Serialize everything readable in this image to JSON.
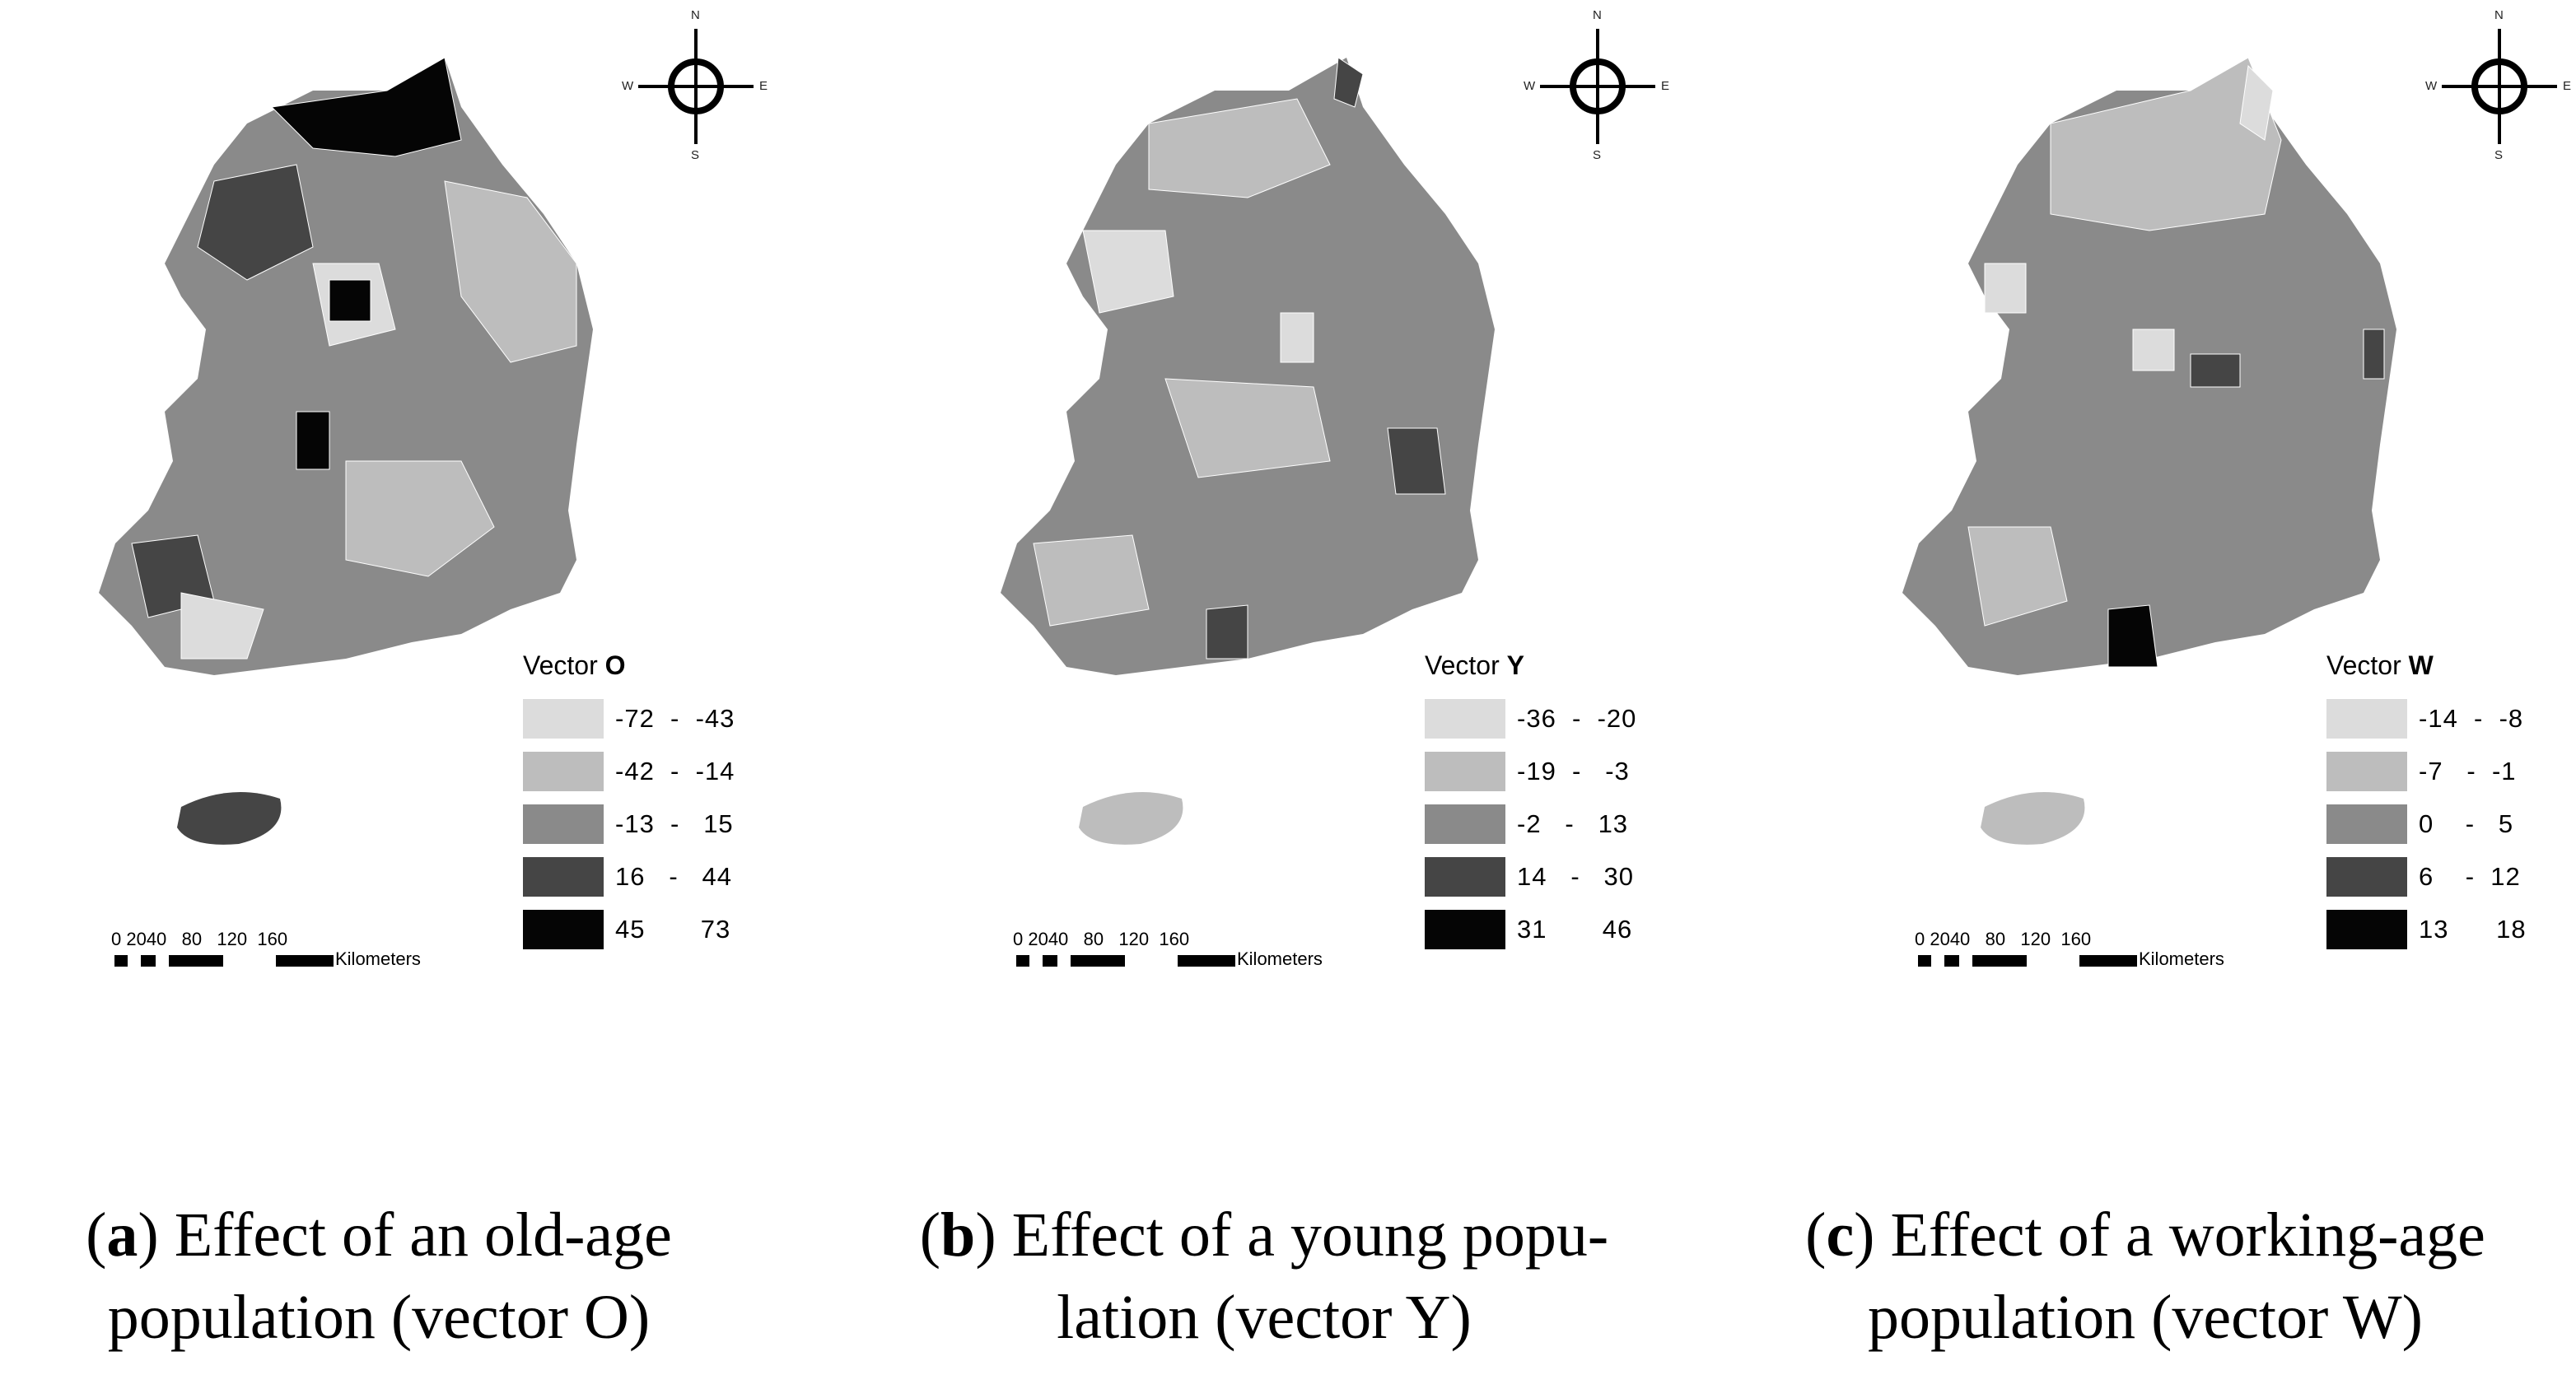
{
  "compass": {
    "n": "N",
    "s": "S",
    "w": "W",
    "e": "E"
  },
  "scale": {
    "ticks": "0 2040   80   120  160",
    "unit": "Kilometers"
  },
  "shade": [
    "#dcdcdc",
    "#bdbdbd",
    "#8a8a8a",
    "#454545",
    "#050505"
  ],
  "panels": [
    {
      "letter": "a",
      "caption_line1": "Effect of an old-age",
      "caption_line2": "population (vector O)",
      "legend_title_prefix": "Vector ",
      "legend_title_var": "O",
      "legend": [
        {
          "label": "-72  -  -43",
          "color": "#dcdcdc"
        },
        {
          "label": "-42  -  -14",
          "color": "#bdbdbd"
        },
        {
          "label": "-13  -   15",
          "color": "#8a8a8a"
        },
        {
          "label": "16   -   44",
          "color": "#454545"
        },
        {
          "label": "45       73",
          "color": "#050505"
        }
      ],
      "mainland_class": 2,
      "jeju_class": 3
    },
    {
      "letter": "b",
      "caption_line1": "Effect of a young popu-",
      "caption_line2": "lation (vector Y)",
      "legend_title_prefix": "Vector ",
      "legend_title_var": "Y",
      "legend": [
        {
          "label": "-36  -  -20",
          "color": "#dcdcdc"
        },
        {
          "label": "-19  -   -3",
          "color": "#bdbdbd"
        },
        {
          "label": "-2   -   13",
          "color": "#8a8a8a"
        },
        {
          "label": "14   -   30",
          "color": "#454545"
        },
        {
          "label": "31       46",
          "color": "#050505"
        }
      ],
      "mainland_class": 2,
      "jeju_class": 1
    },
    {
      "letter": "c",
      "caption_line1": "Effect of a working-age",
      "caption_line2": "population (vector W)",
      "legend_title_prefix": "Vector ",
      "legend_title_var": "W",
      "legend": [
        {
          "label": "-14  -  -8",
          "color": "#dcdcdc"
        },
        {
          "label": "-7   -  -1",
          "color": "#bdbdbd"
        },
        {
          "label": "0    -   5",
          "color": "#8a8a8a"
        },
        {
          "label": "6    -  12",
          "color": "#454545"
        },
        {
          "label": "13      18",
          "color": "#050505"
        }
      ],
      "mainland_class": 2,
      "jeju_class": 1
    }
  ]
}
